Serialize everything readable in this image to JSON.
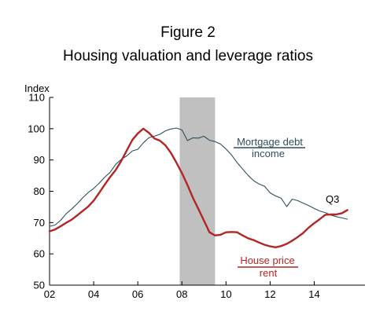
{
  "chart_data": {
    "type": "line",
    "title": "Figure 2",
    "subtitle": "Housing valuation and leverage ratios",
    "xlabel": "",
    "ylabel": "",
    "y_unit_label": "Index",
    "xlim": [
      2002.0,
      2016.3
    ],
    "ylim": [
      50,
      110
    ],
    "x_ticks": [
      2002,
      2004,
      2006,
      2008,
      2010,
      2012,
      2014
    ],
    "x_tick_labels": [
      "02",
      "04",
      "06",
      "08",
      "10",
      "12",
      "14"
    ],
    "y_ticks": [
      50,
      60,
      70,
      80,
      90,
      100,
      110
    ],
    "y_tick_labels": [
      "50",
      "60",
      "70",
      "80",
      "90",
      "100",
      "110"
    ],
    "grid": false,
    "shaded_region": {
      "x_start": 2007.9,
      "x_end": 2009.5,
      "color": "#c0c0c0"
    },
    "end_annotation": "Q3",
    "series": [
      {
        "label_numerator": "Mortgage debt",
        "label_denominator": "income",
        "color": "#2e4f5e",
        "x": [
          2002.0,
          2002.25,
          2002.5,
          2002.75,
          2003.0,
          2003.25,
          2003.5,
          2003.75,
          2004.0,
          2004.25,
          2004.5,
          2004.75,
          2005.0,
          2005.25,
          2005.5,
          2005.75,
          2006.0,
          2006.25,
          2006.5,
          2006.75,
          2007.0,
          2007.25,
          2007.5,
          2007.75,
          2008.0,
          2008.25,
          2008.5,
          2008.75,
          2009.0,
          2009.25,
          2009.5,
          2009.75,
          2010.0,
          2010.25,
          2010.5,
          2010.75,
          2011.0,
          2011.25,
          2011.5,
          2011.75,
          2012.0,
          2012.25,
          2012.5,
          2012.75,
          2013.0,
          2013.25,
          2013.5,
          2013.75,
          2014.0,
          2014.25,
          2014.5,
          2014.75,
          2015.0,
          2015.25,
          2015.5
        ],
        "values": [
          68.8,
          69.2,
          70.7,
          72.8,
          74.3,
          76.0,
          77.9,
          79.6,
          80.9,
          82.6,
          84.5,
          86.1,
          88.6,
          90.2,
          91.3,
          92.9,
          93.4,
          95.5,
          97.1,
          97.6,
          98.2,
          99.3,
          99.9,
          100.2,
          99.6,
          96.2,
          97.1,
          97.0,
          97.6,
          96.3,
          95.9,
          95.1,
          93.5,
          91.6,
          89.2,
          87.1,
          85.1,
          83.4,
          82.3,
          81.6,
          79.5,
          78.5,
          77.8,
          75.1,
          77.5,
          77.0,
          76.2,
          75.4,
          74.5,
          73.7,
          73.2,
          72.4,
          71.9,
          71.5,
          71.1
        ]
      },
      {
        "label_numerator": "House price",
        "label_denominator": "rent",
        "color": "#b42525",
        "x": [
          2002.0,
          2002.25,
          2002.5,
          2002.75,
          2003.0,
          2003.25,
          2003.5,
          2003.75,
          2004.0,
          2004.25,
          2004.5,
          2004.75,
          2005.0,
          2005.25,
          2005.5,
          2005.75,
          2006.0,
          2006.25,
          2006.5,
          2006.75,
          2007.0,
          2007.25,
          2007.5,
          2007.75,
          2008.0,
          2008.25,
          2008.5,
          2008.75,
          2009.0,
          2009.25,
          2009.5,
          2009.75,
          2010.0,
          2010.25,
          2010.5,
          2010.75,
          2011.0,
          2011.25,
          2011.5,
          2011.75,
          2012.0,
          2012.25,
          2012.5,
          2012.75,
          2013.0,
          2013.25,
          2013.5,
          2013.75,
          2014.0,
          2014.25,
          2014.5,
          2014.75,
          2015.0,
          2015.25,
          2015.5
        ],
        "values": [
          67.2,
          67.8,
          68.8,
          69.9,
          70.9,
          72.3,
          73.7,
          75.1,
          77.0,
          79.5,
          82.1,
          84.6,
          86.8,
          89.7,
          93.0,
          96.4,
          98.5,
          100.0,
          98.7,
          96.9,
          96.2,
          94.7,
          92.3,
          89.2,
          85.8,
          82.0,
          77.9,
          74.3,
          70.6,
          66.9,
          65.9,
          66.1,
          66.9,
          67.0,
          66.9,
          65.9,
          65.0,
          64.4,
          63.6,
          62.9,
          62.4,
          62.1,
          62.5,
          63.2,
          64.2,
          65.4,
          66.7,
          68.4,
          69.8,
          71.1,
          72.5,
          72.6,
          72.6,
          73.0,
          74.0
        ]
      }
    ]
  }
}
